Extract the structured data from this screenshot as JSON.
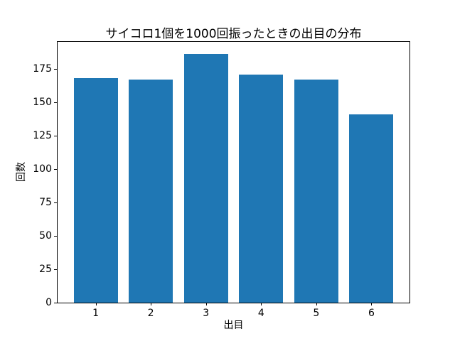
{
  "chart_data": {
    "type": "bar",
    "title": "サイコロ1個を1000回振ったときの出目の分布",
    "xlabel": "出目",
    "ylabel": "回数",
    "categories": [
      "1",
      "2",
      "3",
      "4",
      "5",
      "6"
    ],
    "values": [
      168,
      167,
      186,
      171,
      167,
      141
    ],
    "yticks": [
      0,
      25,
      50,
      75,
      100,
      125,
      150,
      175
    ],
    "ylim": [
      0,
      195.3
    ],
    "xlim": [
      0.31,
      6.69
    ],
    "bar_width": 0.8,
    "bar_color": "#1f77b4",
    "background_color": "#ffffff",
    "spine_color": "#000000",
    "grid": false,
    "legend": false
  }
}
